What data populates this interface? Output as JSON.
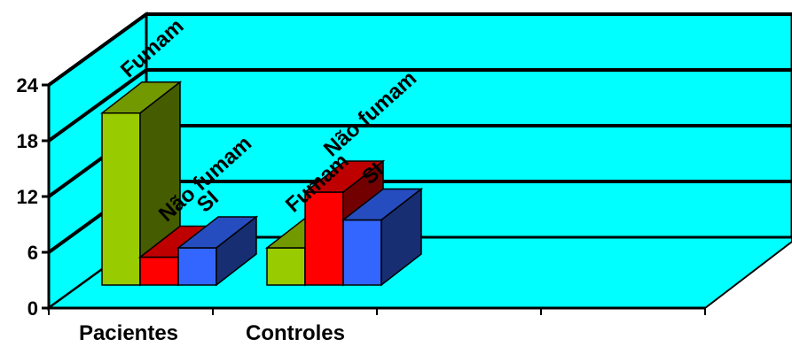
{
  "chart_data": {
    "type": "bar",
    "title": "",
    "xlabel": "",
    "ylabel": "",
    "categories": [
      "Pacientes",
      "Controles"
    ],
    "yticks": [
      "0",
      "6",
      "12",
      "18",
      "24"
    ],
    "ylim": [
      0,
      24
    ],
    "grid": true,
    "three_d": true,
    "series": [
      {
        "name": "Fumam",
        "color": "#99cc00",
        "values": [
          18.5,
          4
        ]
      },
      {
        "name": "Não fumam",
        "color": "#ff0000",
        "values": [
          3,
          10
        ]
      },
      {
        "name": "SI",
        "color": "#3366ff",
        "values": [
          4,
          7
        ]
      }
    ],
    "bar_labels": [
      [
        "Fumam",
        "Não fumam",
        "SI"
      ],
      [
        "Fumam",
        "Não fumam",
        "SI"
      ]
    ],
    "colors": {
      "wall": "#00ffff",
      "axis": "#000000"
    }
  }
}
